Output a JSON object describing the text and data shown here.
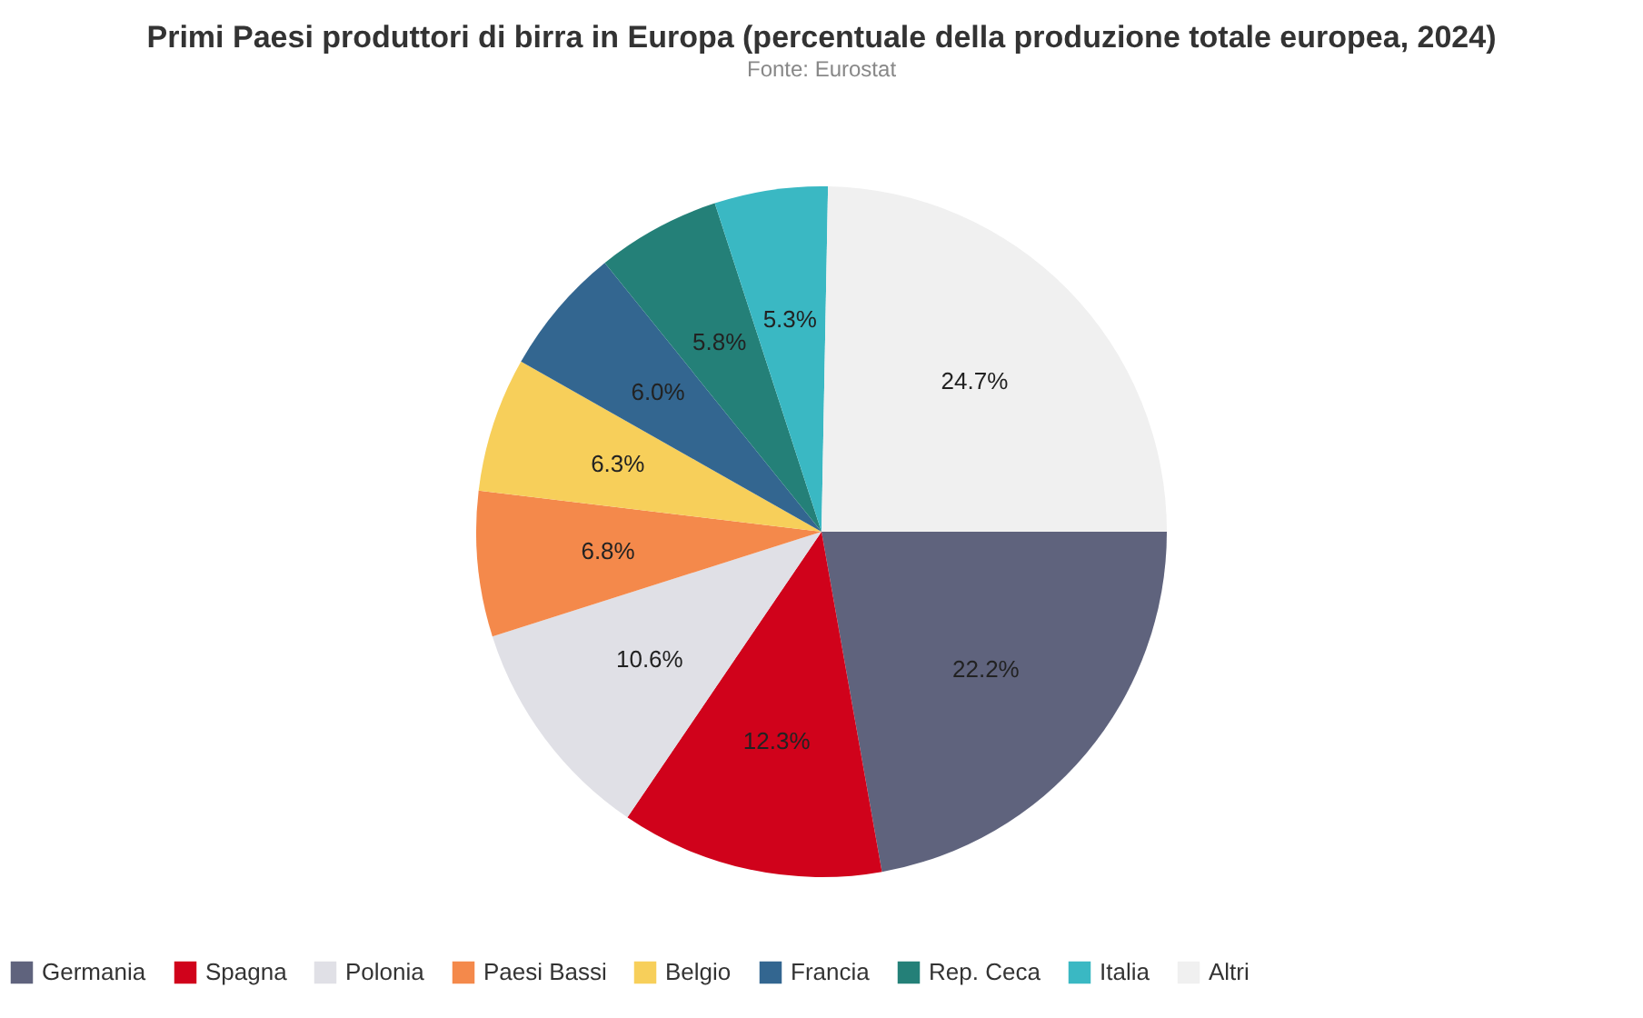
{
  "chart_data": {
    "type": "pie",
    "title": "Primi Paesi produttori di birra in Europa (percentuale della produzione totale europea, 2024)",
    "subtitle": "Fonte: Eurostat",
    "categories": [
      "Germania",
      "Spagna",
      "Polonia",
      "Paesi Bassi",
      "Belgio",
      "Francia",
      "Rep. Ceca",
      "Italia",
      "Altri"
    ],
    "values": [
      22.2,
      12.3,
      10.6,
      6.8,
      6.3,
      6.0,
      5.8,
      5.3,
      24.7
    ],
    "value_labels": [
      "22.2%",
      "12.3%",
      "10.6%",
      "6.8%",
      "6.3%",
      "6.0%",
      "5.8%",
      "5.3%",
      "24.7%"
    ],
    "colors": [
      "#5f637d",
      "#d0021b",
      "#e0e0e6",
      "#f4894b",
      "#f7cf5a",
      "#336690",
      "#248078",
      "#3ab8c3",
      "#f0f0f0"
    ],
    "legend": "bottom"
  }
}
